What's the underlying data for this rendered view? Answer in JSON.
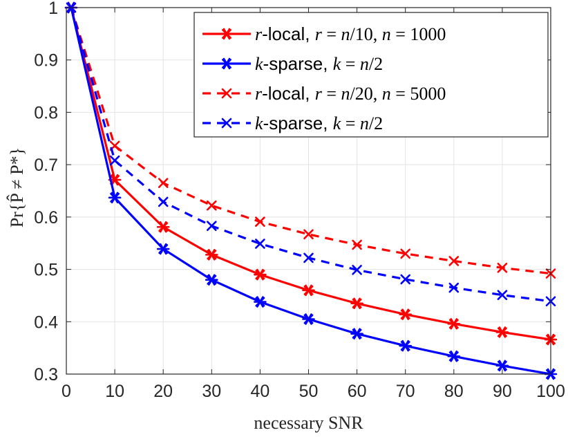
{
  "chart_data": {
    "type": "line",
    "xlabel": "necessary SNR",
    "ylabel": "Pr{P̂ ≠ P*}",
    "xlim": [
      0,
      100
    ],
    "ylim": [
      0.3,
      1
    ],
    "xticks": [
      0,
      10,
      20,
      30,
      40,
      50,
      60,
      70,
      80,
      90,
      100
    ],
    "xtick_labels": [
      "0",
      "10",
      "20",
      "30",
      "40",
      "50",
      "60",
      "70",
      "80",
      "90",
      "100"
    ],
    "yticks": [
      0.3,
      0.4,
      0.5,
      0.6,
      0.7,
      0.8,
      0.9,
      1
    ],
    "ytick_labels": [
      "0.3",
      "0.4",
      "0.5",
      "0.6",
      "0.7",
      "0.8",
      "0.9",
      "1"
    ],
    "grid": true,
    "legend_position": "top-right",
    "x": [
      1,
      10,
      20,
      30,
      40,
      50,
      60,
      70,
      80,
      90,
      100
    ],
    "series": [
      {
        "name": "r-local, r = n/10, n = 1000",
        "legend": {
          "prefix": "r",
          "text1": "-local, ",
          "var1": "r",
          "eq1": " = ",
          "var2": "n",
          "frac1": "/10, ",
          "var3": "n",
          "eq2": " = 1000"
        },
        "color": "#ff0000",
        "dash": "solid",
        "marker": "asterisk",
        "values": [
          1.0,
          0.671,
          0.581,
          0.528,
          0.49,
          0.46,
          0.435,
          0.414,
          0.396,
          0.38,
          0.366
        ]
      },
      {
        "name": "k-sparse, k = n/2",
        "legend": {
          "prefix": "k",
          "text1": "-sparse, ",
          "var1": "k",
          "eq1": " = ",
          "var2": "n",
          "frac1": "/2"
        },
        "color": "#0000ff",
        "dash": "solid",
        "marker": "asterisk",
        "values": [
          1.0,
          0.637,
          0.539,
          0.48,
          0.438,
          0.405,
          0.377,
          0.354,
          0.334,
          0.316,
          0.3
        ]
      },
      {
        "name": "r-local, r = n/20, n = 5000",
        "legend": {
          "prefix": "r",
          "text1": "-local, ",
          "var1": "r",
          "eq1": " = ",
          "var2": "n",
          "frac1": "/20, ",
          "var3": "n",
          "eq2": " = 5000"
        },
        "color": "#ff0000",
        "dash": "dashed",
        "marker": "x",
        "values": [
          1.0,
          0.736,
          0.665,
          0.622,
          0.591,
          0.567,
          0.547,
          0.53,
          0.516,
          0.503,
          0.492
        ]
      },
      {
        "name": "k-sparse, k = n/2",
        "legend": {
          "prefix": "k",
          "text1": "-sparse, ",
          "var1": "k",
          "eq1": " = ",
          "var2": "n",
          "frac1": "/2"
        },
        "color": "#0000ff",
        "dash": "dashed",
        "marker": "x",
        "values": [
          1.0,
          0.708,
          0.629,
          0.583,
          0.549,
          0.522,
          0.499,
          0.481,
          0.465,
          0.451,
          0.439
        ]
      }
    ]
  }
}
